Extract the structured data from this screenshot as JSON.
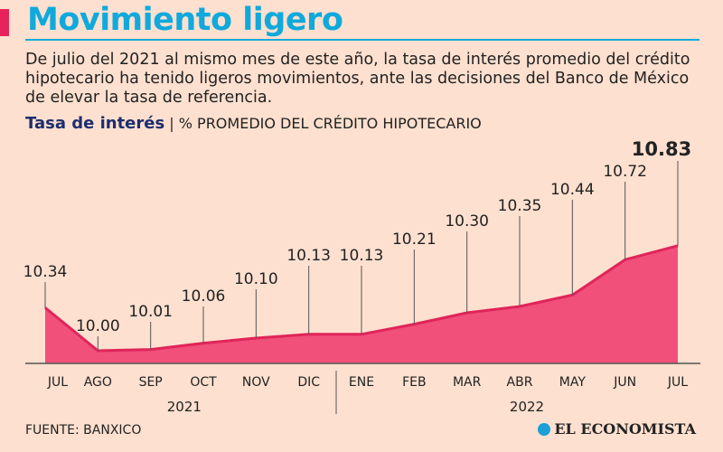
{
  "header": {
    "title": "Movimiento ligero",
    "description": "De julio del 2021 al mismo mes de este año, la tasa de interés promedio del crédito hipotecario ha tenido ligeros movimientos, ante las decisiones del Banco de México de elevar la tasa de referencia.",
    "subtitle_bold": "Tasa de interés",
    "subtitle_rest": " | % PROMEDIO DEL CRÉDITO HIPOTECARIO"
  },
  "footer": {
    "source": "FUENTE: BANXICO",
    "logo": "EL ECONOMISTA"
  },
  "chart_data": {
    "type": "area",
    "categories": [
      "JUL",
      "AGO",
      "SEP",
      "OCT",
      "NOV",
      "DIC",
      "ENE",
      "FEB",
      "MAR",
      "ABR",
      "MAY",
      "JUN",
      "JUL"
    ],
    "year_groups": [
      {
        "label": "2021",
        "from": 0,
        "to": 5
      },
      {
        "label": "2022",
        "from": 6,
        "to": 12
      }
    ],
    "values": [
      10.34,
      10.0,
      10.01,
      10.06,
      10.1,
      10.13,
      10.13,
      10.21,
      10.3,
      10.35,
      10.44,
      10.72,
      10.83
    ],
    "value_labels": [
      "10.34",
      "10.00",
      "10.01",
      "10.06",
      "10.10",
      "10.13",
      "10.13",
      "10.21",
      "10.30",
      "10.35",
      "10.44",
      "10.72",
      "10.83"
    ],
    "ylim": [
      9.9,
      11.7
    ],
    "grid": false,
    "colors": {
      "fill": "#f0507a",
      "line": "#e0245a",
      "title": "#10a9dc",
      "subtitle": "#1d2d6e"
    }
  }
}
